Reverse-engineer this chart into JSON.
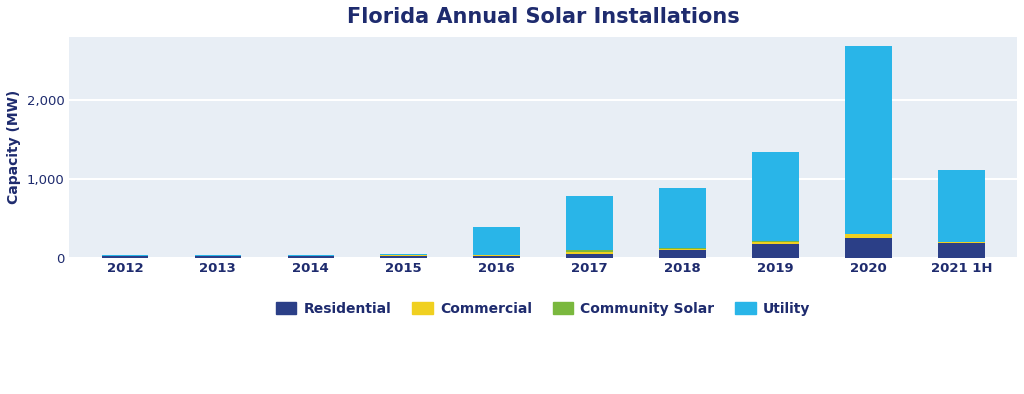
{
  "years": [
    "2012",
    "2013",
    "2014",
    "2015",
    "2016",
    "2017",
    "2018",
    "2019",
    "2020",
    "2021 1H"
  ],
  "residential": [
    15,
    18,
    15,
    22,
    18,
    50,
    90,
    170,
    250,
    180
  ],
  "commercial": [
    3,
    5,
    5,
    8,
    8,
    18,
    18,
    30,
    50,
    12
  ],
  "community_solar": [
    2,
    2,
    2,
    4,
    4,
    30,
    12,
    8,
    4,
    4
  ],
  "utility": [
    10,
    12,
    10,
    12,
    360,
    685,
    760,
    1125,
    2380,
    915
  ],
  "title": "Florida Annual Solar Installations",
  "ylabel": "Capacity (MW)",
  "colors": {
    "residential": "#2b3f87",
    "commercial": "#f0d020",
    "community_solar": "#7ab83e",
    "utility": "#29b5e8"
  },
  "legend_labels": [
    "Residential",
    "Commercial",
    "Community Solar",
    "Utility"
  ],
  "ylim": [
    0,
    2800
  ],
  "yticks": [
    0,
    1000,
    2000
  ],
  "background_color": "#e8eef5",
  "fig_background": "#ffffff",
  "title_color": "#1e2b6e",
  "title_fontsize": 15,
  "label_fontsize": 10,
  "tick_fontsize": 9.5,
  "axis_color": "#1e2b6e",
  "bar_width": 0.5,
  "grid_color": "#ffffff",
  "grid_linewidth": 1.5
}
